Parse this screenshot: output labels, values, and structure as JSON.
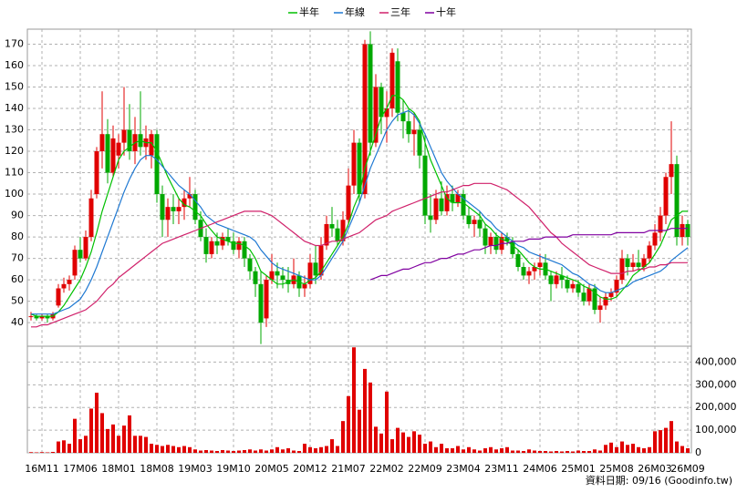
{
  "chart_data": {
    "type": "candlestick",
    "footer": "資料日期: 09/16 (Goodinfo.tw)",
    "grid": true,
    "up_color": "#e00000",
    "down_color": "#00a800",
    "categories": [
      null,
      null,
      "16M11",
      null,
      null,
      null,
      null,
      null,
      null,
      "17M06",
      null,
      null,
      null,
      null,
      null,
      null,
      "18M01",
      null,
      null,
      null,
      null,
      null,
      null,
      "18M08",
      null,
      null,
      null,
      null,
      null,
      null,
      "19M03",
      null,
      null,
      null,
      null,
      null,
      null,
      "19M10",
      null,
      null,
      null,
      null,
      null,
      null,
      "20M05",
      null,
      null,
      null,
      null,
      null,
      null,
      "20M12",
      null,
      null,
      null,
      null,
      null,
      null,
      "21M07",
      null,
      null,
      null,
      null,
      null,
      null,
      "22M02",
      null,
      null,
      null,
      null,
      null,
      null,
      "22M09",
      null,
      null,
      null,
      null,
      null,
      null,
      "23M04",
      null,
      null,
      null,
      null,
      null,
      null,
      "23M11",
      null,
      null,
      null,
      null,
      null,
      null,
      "24M06",
      null,
      null,
      null,
      null,
      null,
      null,
      "25M01",
      null,
      null,
      null,
      null,
      null,
      null,
      "25M08",
      null,
      null,
      null,
      null,
      null,
      null,
      "26M03",
      null,
      null,
      null,
      null,
      null,
      "26M09"
    ],
    "open": [
      43,
      43,
      42,
      43,
      42,
      48,
      56,
      58,
      62,
      74,
      70,
      80,
      100,
      120,
      128,
      110,
      118,
      124,
      130,
      120,
      128,
      122,
      118,
      128,
      100,
      88,
      94,
      92,
      94,
      98,
      100,
      88,
      80,
      72,
      78,
      76,
      80,
      78,
      74,
      78,
      70,
      64,
      58,
      42,
      60,
      64,
      62,
      60,
      58,
      62,
      56,
      58,
      68,
      62,
      76,
      86,
      84,
      78,
      88,
      104,
      124,
      100,
      170,
      124,
      150,
      136,
      140,
      162,
      138,
      134,
      128,
      130,
      118,
      90,
      88,
      98,
      92,
      100,
      96,
      100,
      90,
      86,
      88,
      84,
      76,
      80,
      74,
      80,
      78,
      72,
      66,
      62,
      64,
      66,
      68,
      62,
      58,
      62,
      60,
      56,
      58,
      54,
      50,
      56,
      46,
      48,
      52,
      54,
      60,
      70,
      66,
      68,
      66,
      70,
      76,
      82,
      90,
      108,
      114,
      80,
      86
    ],
    "high": [
      45,
      44,
      44,
      44,
      45,
      58,
      61,
      62,
      76,
      80,
      83,
      102,
      122,
      148,
      135,
      132,
      128,
      150,
      142,
      136,
      148,
      132,
      130,
      130,
      104,
      98,
      100,
      98,
      102,
      108,
      102,
      92,
      84,
      80,
      82,
      82,
      84,
      82,
      80,
      80,
      72,
      66,
      64,
      62,
      72,
      68,
      66,
      66,
      70,
      64,
      62,
      72,
      76,
      80,
      90,
      94,
      88,
      92,
      112,
      130,
      126,
      172,
      176,
      156,
      152,
      148,
      168,
      168,
      144,
      140,
      138,
      134,
      128,
      100,
      102,
      106,
      104,
      104,
      102,
      102,
      94,
      90,
      92,
      86,
      82,
      82,
      82,
      82,
      80,
      74,
      68,
      66,
      68,
      72,
      72,
      64,
      64,
      66,
      62,
      60,
      60,
      58,
      58,
      58,
      52,
      54,
      56,
      62,
      74,
      72,
      72,
      74,
      72,
      78,
      86,
      94,
      110,
      134,
      118,
      90,
      88
    ],
    "low": [
      41,
      41,
      41,
      40,
      41,
      47,
      54,
      55,
      60,
      68,
      69,
      78,
      98,
      112,
      105,
      108,
      112,
      118,
      116,
      114,
      118,
      116,
      112,
      96,
      80,
      80,
      86,
      86,
      88,
      94,
      86,
      78,
      68,
      70,
      72,
      74,
      76,
      72,
      70,
      66,
      60,
      52,
      30,
      38,
      58,
      56,
      56,
      54,
      56,
      52,
      52,
      56,
      58,
      60,
      74,
      80,
      76,
      76,
      86,
      100,
      96,
      98,
      118,
      122,
      128,
      124,
      136,
      134,
      126,
      124,
      118,
      112,
      86,
      82,
      86,
      90,
      90,
      92,
      94,
      88,
      84,
      80,
      80,
      72,
      72,
      72,
      72,
      76,
      70,
      64,
      60,
      58,
      60,
      62,
      60,
      50,
      56,
      56,
      54,
      54,
      52,
      48,
      48,
      44,
      40,
      46,
      50,
      52,
      58,
      62,
      64,
      64,
      64,
      68,
      74,
      78,
      86,
      100,
      76,
      76,
      76
    ],
    "close": [
      43,
      42,
      43,
      42,
      44,
      56,
      58,
      60,
      74,
      70,
      80,
      98,
      120,
      128,
      110,
      126,
      124,
      130,
      120,
      128,
      122,
      126,
      128,
      100,
      88,
      94,
      92,
      94,
      98,
      100,
      88,
      80,
      72,
      78,
      76,
      80,
      78,
      74,
      78,
      70,
      64,
      58,
      40,
      60,
      64,
      62,
      60,
      58,
      62,
      56,
      58,
      68,
      62,
      76,
      86,
      84,
      78,
      88,
      104,
      124,
      100,
      170,
      124,
      150,
      136,
      140,
      166,
      138,
      134,
      128,
      130,
      118,
      90,
      88,
      98,
      92,
      100,
      96,
      100,
      90,
      86,
      88,
      84,
      76,
      80,
      74,
      80,
      78,
      72,
      66,
      62,
      64,
      66,
      68,
      62,
      58,
      62,
      60,
      56,
      58,
      54,
      50,
      56,
      46,
      48,
      52,
      54,
      60,
      70,
      66,
      68,
      66,
      70,
      76,
      82,
      90,
      108,
      114,
      80,
      86,
      80
    ],
    "ylim": [
      29,
      177
    ],
    "yticks": [
      40,
      50,
      60,
      70,
      80,
      90,
      100,
      110,
      120,
      130,
      140,
      150,
      160,
      170
    ],
    "volume": {
      "color": "#e00000",
      "ylim": [
        0,
        470000
      ],
      "ticks": [
        0,
        {
          "value": 100000,
          "label": "100,000"
        },
        {
          "value": 200000,
          "label": "200,000"
        },
        {
          "value": 300000,
          "label": "300,000"
        },
        {
          "value": 400000,
          "label": "400,000"
        }
      ],
      "values": [
        3000,
        2000,
        3000,
        2000,
        4000,
        50000,
        55000,
        40000,
        150000,
        60000,
        75000,
        195000,
        265000,
        175000,
        105000,
        125000,
        75000,
        120000,
        165000,
        75000,
        75000,
        70000,
        40000,
        35000,
        30000,
        35000,
        30000,
        25000,
        30000,
        25000,
        15000,
        10000,
        12000,
        10000,
        8000,
        12000,
        10000,
        8000,
        10000,
        12000,
        15000,
        10000,
        15000,
        10000,
        15000,
        25000,
        15000,
        20000,
        10000,
        8000,
        40000,
        25000,
        20000,
        25000,
        30000,
        60000,
        30000,
        140000,
        250000,
        465000,
        190000,
        370000,
        310000,
        115000,
        85000,
        270000,
        60000,
        110000,
        90000,
        70000,
        95000,
        80000,
        40000,
        50000,
        25000,
        40000,
        20000,
        20000,
        30000,
        15000,
        25000,
        15000,
        10000,
        20000,
        25000,
        15000,
        20000,
        25000,
        10000,
        10000,
        8000,
        15000,
        10000,
        8000,
        8000,
        6000,
        8000,
        6000,
        8000,
        6000,
        10000,
        8000,
        8000,
        15000,
        10000,
        35000,
        45000,
        25000,
        50000,
        35000,
        40000,
        25000,
        20000,
        25000,
        95000,
        100000,
        110000,
        140000,
        50000,
        30000,
        20000
      ]
    },
    "series": [
      {
        "name": "半年",
        "color": "#00c000",
        "values": [
          44,
          43,
          43,
          43,
          43,
          45,
          48,
          52,
          56,
          60,
          66,
          73,
          82,
          92,
          100,
          108,
          116,
          120,
          122,
          124,
          125,
          124,
          124,
          120,
          114,
          108,
          103,
          98,
          95,
          94,
          92,
          90,
          86,
          83,
          80,
          79,
          78,
          77,
          77,
          76,
          74,
          70,
          64,
          62,
          60,
          58,
          58,
          59,
          60,
          59,
          58,
          60,
          61,
          64,
          68,
          72,
          76,
          80,
          86,
          94,
          100,
          112,
          120,
          128,
          136,
          140,
          146,
          146,
          144,
          140,
          138,
          134,
          124,
          116,
          110,
          104,
          98,
          96,
          96,
          96,
          94,
          92,
          90,
          86,
          84,
          81,
          79,
          78,
          76,
          74,
          71,
          68,
          66,
          65,
          65,
          64,
          63,
          62,
          61,
          60,
          59,
          57,
          56,
          54,
          52,
          51,
          51,
          52,
          55,
          58,
          62,
          64,
          66,
          68,
          72,
          76,
          82,
          88,
          90,
          92,
          92
        ]
      },
      {
        "name": "年線",
        "color": "#1e78d2",
        "values": [
          44,
          44,
          44,
          44,
          44,
          45,
          46,
          47,
          49,
          51,
          55,
          60,
          66,
          73,
          80,
          87,
          94,
          101,
          107,
          112,
          116,
          118,
          118,
          116,
          113,
          110,
          107,
          104,
          102,
          100,
          97,
          94,
          90,
          88,
          86,
          85,
          84,
          83,
          82,
          81,
          80,
          78,
          74,
          71,
          68,
          66,
          65,
          64,
          63,
          62,
          61,
          60,
          60,
          62,
          66,
          70,
          74,
          78,
          84,
          90,
          96,
          104,
          112,
          118,
          124,
          130,
          134,
          137,
          138,
          139,
          137,
          133,
          128,
          122,
          116,
          110,
          106,
          103,
          100,
          98,
          96,
          94,
          92,
          89,
          87,
          84,
          82,
          80,
          78,
          76,
          75,
          73,
          72,
          71,
          70,
          69,
          68,
          67,
          65,
          63,
          62,
          60,
          58,
          57,
          55,
          54,
          54,
          55,
          56,
          57,
          59,
          60,
          61,
          62,
          63,
          64,
          66,
          69,
          71,
          73,
          75
        ]
      },
      {
        "name": "三年",
        "color": "#d0206a",
        "values": [
          38,
          38,
          39,
          39,
          40,
          41,
          42,
          43,
          44,
          45,
          46,
          48,
          50,
          53,
          56,
          58,
          61,
          63,
          65,
          67,
          69,
          71,
          73,
          75,
          77,
          78,
          79,
          80,
          81,
          82,
          83,
          84,
          85,
          86,
          87,
          88,
          89,
          90,
          91,
          92,
          92,
          92,
          92,
          91,
          90,
          88,
          86,
          84,
          82,
          80,
          78,
          77,
          76,
          76,
          77,
          78,
          78,
          79,
          80,
          81,
          82,
          84,
          86,
          88,
          89,
          90,
          92,
          93,
          94,
          95,
          96,
          97,
          98,
          99,
          100,
          101,
          101,
          102,
          103,
          104,
          104,
          105,
          105,
          105,
          105,
          104,
          103,
          102,
          100,
          98,
          96,
          94,
          91,
          88,
          85,
          82,
          80,
          77,
          75,
          73,
          71,
          69,
          67,
          66,
          65,
          64,
          63,
          63,
          63,
          64,
          64,
          65,
          65,
          66,
          66,
          67,
          67,
          68,
          68,
          68,
          68
        ]
      },
      {
        "name": "十年",
        "color": "#8000a0",
        "values": [
          null,
          null,
          null,
          null,
          null,
          null,
          null,
          null,
          null,
          null,
          null,
          null,
          null,
          null,
          null,
          null,
          null,
          null,
          null,
          null,
          null,
          null,
          null,
          null,
          null,
          null,
          null,
          null,
          null,
          null,
          null,
          null,
          null,
          null,
          null,
          null,
          null,
          null,
          null,
          null,
          null,
          null,
          null,
          null,
          null,
          null,
          null,
          null,
          null,
          null,
          null,
          null,
          null,
          null,
          null,
          null,
          null,
          null,
          null,
          null,
          null,
          null,
          60,
          61,
          62,
          62,
          63,
          64,
          65,
          65,
          66,
          67,
          68,
          68,
          69,
          70,
          70,
          71,
          72,
          72,
          73,
          74,
          74,
          75,
          76,
          76,
          77,
          77,
          78,
          78,
          78,
          79,
          79,
          79,
          80,
          80,
          80,
          80,
          80,
          81,
          81,
          81,
          81,
          81,
          81,
          81,
          81,
          82,
          82,
          82,
          82,
          82,
          82,
          83,
          83,
          83,
          83,
          84,
          84,
          84,
          84
        ]
      }
    ]
  }
}
